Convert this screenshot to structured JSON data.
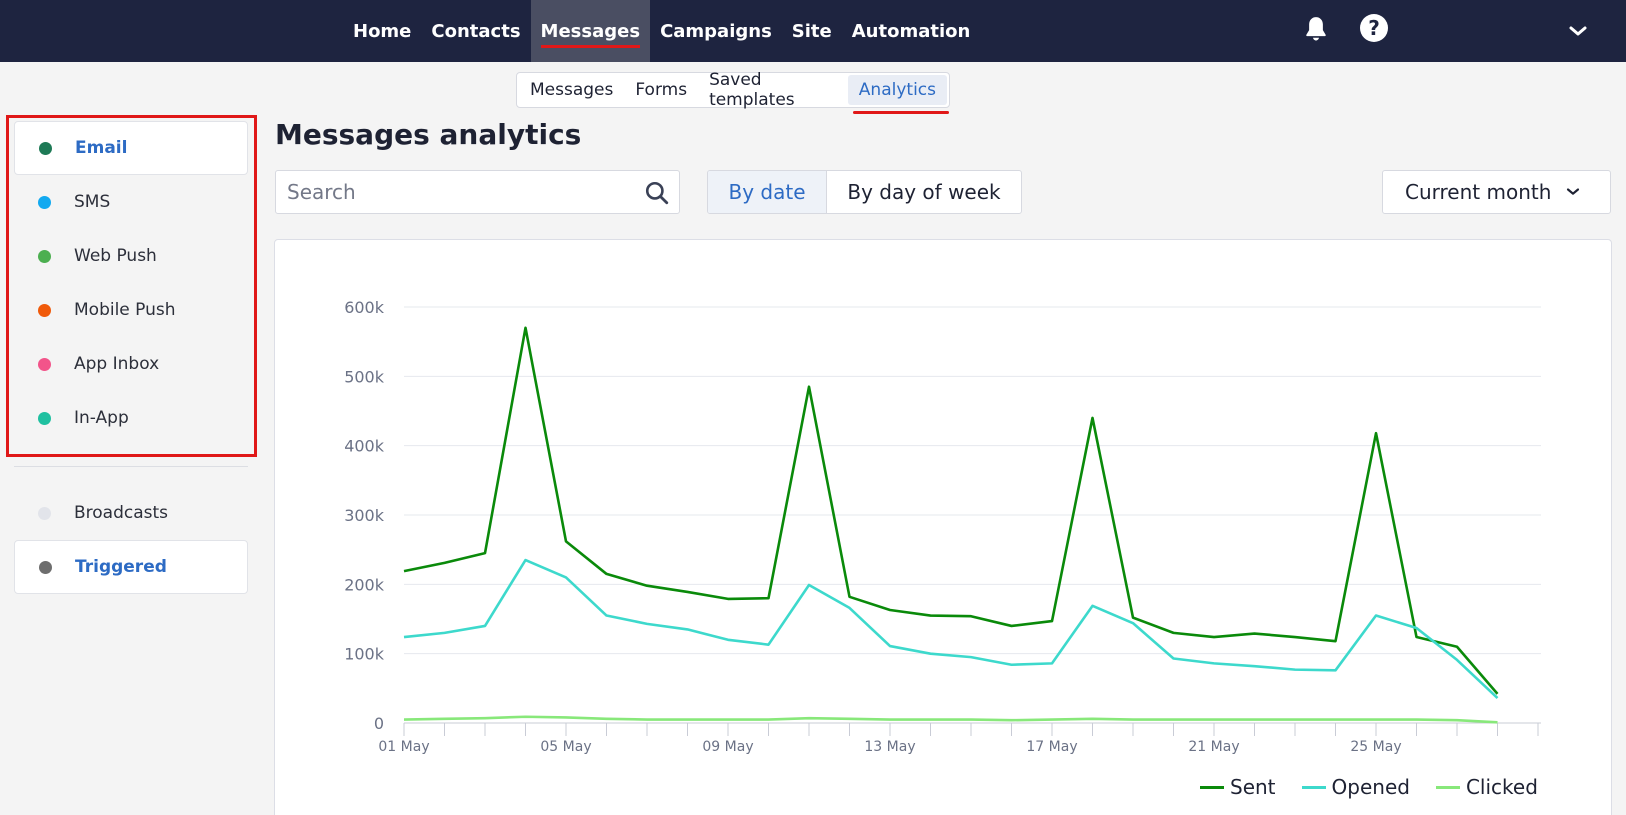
{
  "topnav": {
    "items": [
      {
        "label": "Home",
        "active": false
      },
      {
        "label": "Contacts",
        "active": false
      },
      {
        "label": "Messages",
        "active": true
      },
      {
        "label": "Campaigns",
        "active": false
      },
      {
        "label": "Site",
        "active": false
      },
      {
        "label": "Automation",
        "active": false
      }
    ],
    "icons": [
      "bell-icon",
      "help-icon",
      "chevron-down-icon"
    ],
    "help_glyph": "?"
  },
  "subtabs": {
    "items": [
      {
        "label": "Messages",
        "active": false
      },
      {
        "label": "Forms",
        "active": false
      },
      {
        "label": "Saved templates",
        "active": false
      },
      {
        "label": "Analytics",
        "active": true
      }
    ]
  },
  "sidebar": {
    "channels": [
      {
        "label": "Email",
        "color": "#1e7a56",
        "selected": true
      },
      {
        "label": "SMS",
        "color": "#12a9f0",
        "selected": false
      },
      {
        "label": "Web Push",
        "color": "#4caf50",
        "selected": false
      },
      {
        "label": "Mobile Push",
        "color": "#f05a0a",
        "selected": false
      },
      {
        "label": "App Inbox",
        "color": "#f2548a",
        "selected": false
      },
      {
        "label": "In-App",
        "color": "#1fc0a0",
        "selected": false
      }
    ],
    "types": [
      {
        "label": "Broadcasts",
        "color": "#e2e4ea",
        "selected": false
      },
      {
        "label": "Triggered",
        "color": "#6e6e6e",
        "selected": true
      }
    ]
  },
  "main": {
    "title": "Messages analytics",
    "search_placeholder": "Search",
    "view_toggle": {
      "by_date": "By date",
      "by_day_of_week": "By day of week",
      "selected": "by_date"
    },
    "period": "Current month"
  },
  "chart_data": {
    "type": "line",
    "x_tick_labels": [
      "01 May",
      "05 May",
      "09 May",
      "13 May",
      "17 May",
      "21 May",
      "25 May"
    ],
    "x": [
      1,
      2,
      3,
      4,
      5,
      6,
      7,
      8,
      9,
      10,
      11,
      12,
      13,
      14,
      15,
      16,
      17,
      18,
      19,
      20,
      21,
      22,
      23,
      24,
      25,
      26,
      27,
      28,
      29
    ],
    "y_tick_labels": [
      "0",
      "100k",
      "200k",
      "300k",
      "400k",
      "500k",
      "600k"
    ],
    "ylim": [
      0,
      600000
    ],
    "grid": true,
    "legend_position": "bottom-right",
    "series": [
      {
        "name": "Sent",
        "color": "#0a8a0a",
        "values": [
          219000,
          231000,
          245000,
          570000,
          262000,
          215000,
          198000,
          189000,
          179000,
          180000,
          485000,
          182000,
          163000,
          155000,
          154000,
          140000,
          147000,
          440000,
          152000,
          130000,
          124000,
          129000,
          124000,
          118000,
          418000,
          124000,
          110000,
          42000,
          null
        ]
      },
      {
        "name": "Opened",
        "color": "#3dd9cc",
        "values": [
          124000,
          130000,
          140000,
          235000,
          210000,
          155000,
          143000,
          135000,
          120000,
          113000,
          199000,
          166000,
          111000,
          100000,
          95000,
          84000,
          86000,
          169000,
          144000,
          93000,
          86000,
          82000,
          77000,
          76000,
          155000,
          137000,
          91000,
          36000,
          null
        ]
      },
      {
        "name": "Clicked",
        "color": "#88e87a",
        "values": [
          5000,
          6000,
          7000,
          9000,
          8000,
          6000,
          5000,
          5000,
          5000,
          5000,
          7000,
          6000,
          5000,
          5000,
          5000,
          4000,
          5000,
          6000,
          5000,
          5000,
          5000,
          5000,
          5000,
          5000,
          5000,
          5000,
          4000,
          1000,
          null
        ]
      }
    ]
  }
}
